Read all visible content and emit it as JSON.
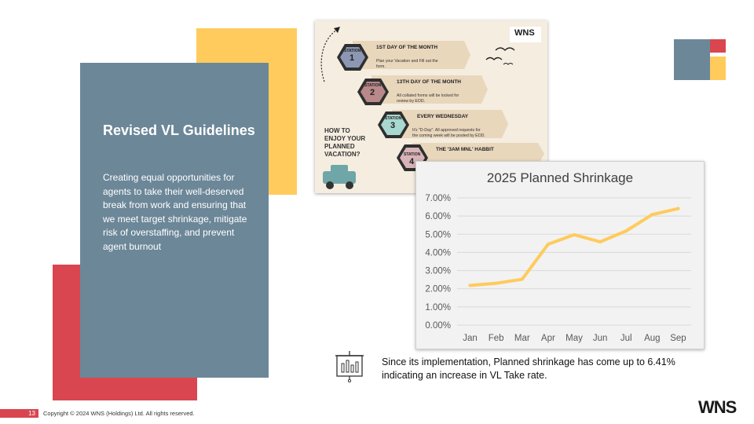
{
  "slide": {
    "title": "Revised VL Guidelines",
    "body": "Creating equal opportunities for agents to take their well-deserved break from work and ensuring that we meet target shrinkage, mitigate risk of overstaffing, and prevent agent burnout",
    "note": "Since its implementation, Planned shrinkage has come up to 6.41% indicating an increase in VL Take rate.",
    "page_number": "13",
    "copyright": "Copyright © 2024 WNS (Holdings) Ltd. All rights reserved.",
    "logo": "WNS"
  },
  "infographic": {
    "logo": "WNS",
    "heading": [
      "HOW TO",
      "ENJOY YOUR",
      "PLANNED",
      "VACATION?"
    ],
    "stations": [
      {
        "badge": "STATION",
        "num": "1",
        "title": "1ST DAY OF THE MONTH",
        "lines": [
          "Plan your Vacation and Fill out the",
          "form."
        ]
      },
      {
        "badge": "STATION",
        "num": "2",
        "title": "13TH DAY OF THE MONTH",
        "lines": [
          "All collated forms will be locked for",
          "review by EOD."
        ]
      },
      {
        "badge": "STATION",
        "num": "3",
        "title": "EVERY WEDNESDAY",
        "lines": [
          "It's \"D-Day\". All approved requests for",
          "the coming week will be posted by EOD."
        ]
      },
      {
        "badge": "STATION",
        "num": "4",
        "title": "THE '3AM MNL' HABBIT",
        "lines": []
      }
    ]
  },
  "chart_data": {
    "type": "line",
    "title": "2025 Planned Shrinkage",
    "categories": [
      "Jan",
      "Feb",
      "Mar",
      "Apr",
      "May",
      "Jun",
      "Jul",
      "Aug",
      "Sep"
    ],
    "series": [
      {
        "values": [
          2.18,
          2.3,
          2.52,
          4.45,
          4.97,
          4.58,
          5.18,
          6.08,
          6.41
        ]
      }
    ],
    "yticks": [
      "0.00%",
      "1.00%",
      "2.00%",
      "3.00%",
      "4.00%",
      "5.00%",
      "6.00%",
      "7.00%"
    ],
    "ylim": [
      0,
      7
    ],
    "grid": true,
    "line_color": "#FECB5C"
  },
  "colors": {
    "blue": "#6C8798",
    "red": "#D9464F",
    "yellow": "#FECB5C"
  }
}
